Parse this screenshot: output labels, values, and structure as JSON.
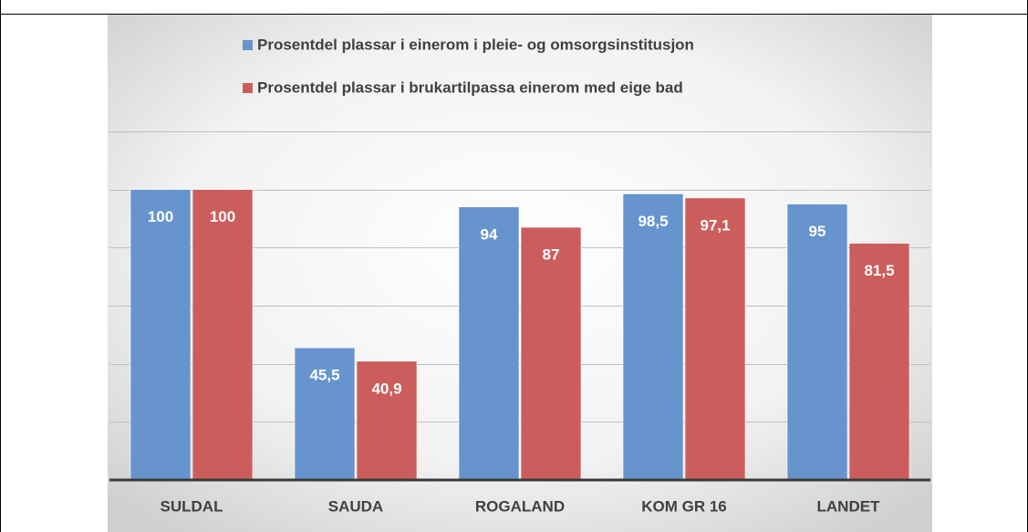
{
  "chart_data": {
    "type": "bar",
    "categories": [
      "SULDAL",
      "SAUDA",
      "ROGALAND",
      "KOM GR 16",
      "LANDET"
    ],
    "series": [
      {
        "name": "Prosentdel plassar i einerom i pleie- og omsorgsinstitusjon",
        "color": "#6794cc",
        "values": [
          100,
          45.5,
          94,
          98.5,
          95
        ],
        "value_labels": [
          "100",
          "45,5",
          "94",
          "98,5",
          "95"
        ]
      },
      {
        "name": "Prosentdel plassar i brukartilpassa einerom med eige bad",
        "color": "#cb5e5c",
        "values": [
          100,
          40.9,
          87,
          97.1,
          81.5
        ],
        "value_labels": [
          "100",
          "40,9",
          "87",
          "97,1",
          "81,5"
        ]
      }
    ],
    "ylim": [
      0,
      120
    ],
    "yticks": [
      0,
      20,
      40,
      60,
      80,
      100,
      120
    ],
    "grid": true,
    "legend": "top"
  }
}
